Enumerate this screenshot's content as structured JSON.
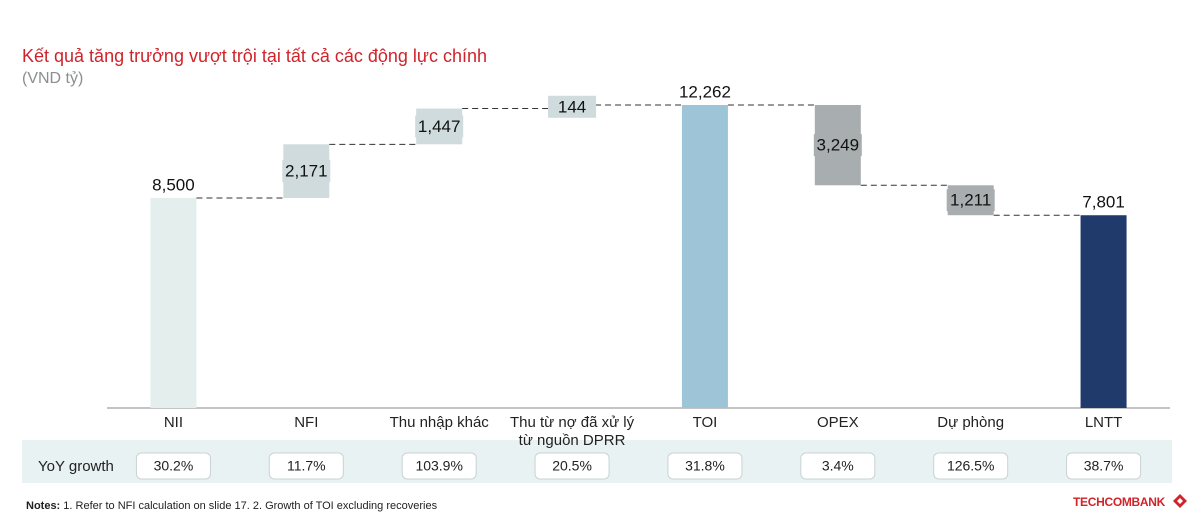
{
  "chart_data": {
    "type": "waterfall",
    "title": "Kết quả tăng trưởng vượt trội tại tất cả các động lực chính",
    "subtitle": "(VND tỷ)",
    "categories": [
      "NII",
      "NFI",
      "Thu nhập khác",
      "Thu từ nợ đã xử lý từ nguồn DPRR",
      "TOI",
      "OPEX",
      "Dự phòng",
      "LNTT"
    ],
    "values": [
      8500,
      2171,
      1447,
      144,
      12262,
      3249,
      1211,
      7801
    ],
    "value_labels": [
      "8,500",
      "2,171",
      "1,447",
      "144",
      "12,262",
      "3,249",
      "1,211",
      "7,801"
    ],
    "measures": [
      "total",
      "increase",
      "increase",
      "increase",
      "total",
      "decrease",
      "decrease",
      "total"
    ],
    "colors": [
      "#e3eeed",
      "#cfdbdd",
      "#cfdbdd",
      "#cfdbdd",
      "#9dc4d7",
      "#a8aeaf",
      "#a8aeaf",
      "#1f3a6b"
    ],
    "growth": {
      "label": "YoY growth",
      "values": [
        30.2,
        11.7,
        103.9,
        20.5,
        31.8,
        3.4,
        126.5,
        38.7
      ],
      "value_labels": [
        "30.2%",
        "11.7%",
        "103.9%",
        "20.5%",
        "31.8%",
        "3.4%",
        "126.5%",
        "38.7%"
      ]
    }
  },
  "footer": {
    "notes_label": "Notes:",
    "notes_text": "1. Refer to NFI calculation on slide 17. 2. Growth of TOI excluding recoveries",
    "brand": "TECHCOMBANK"
  }
}
